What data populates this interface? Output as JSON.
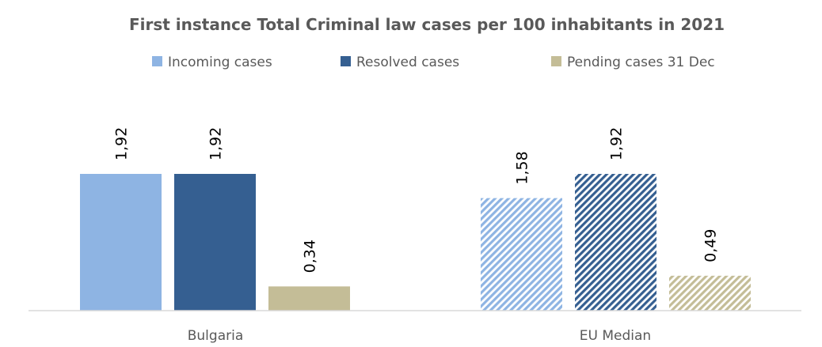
{
  "chart_data": {
    "type": "bar",
    "title": "First instance Total Criminal law cases per 100 inhabitants in 2021",
    "xlabel": "",
    "ylabel": "",
    "categories": [
      "Bulgaria",
      "EU Median"
    ],
    "series": [
      {
        "name": "Incoming cases",
        "values": [
          1.92,
          1.58
        ],
        "labels": [
          "1,92",
          "1,58"
        ]
      },
      {
        "name": "Resolved cases",
        "values": [
          1.92,
          1.92
        ],
        "labels": [
          "1,92",
          "1,92"
        ]
      },
      {
        "name": "Pending cases 31 Dec",
        "values": [
          0.34,
          0.49
        ],
        "labels": [
          "0,34",
          "0,49"
        ]
      }
    ],
    "ylim": [
      0,
      1.92
    ],
    "grid": false,
    "legend_position": "top",
    "data_labels": "rotated above bars",
    "pattern": {
      "Bulgaria": "solid",
      "EU Median": "diagonal hatch"
    },
    "colors": [
      "#8EB4E3",
      "#355F91",
      "#C4BD97"
    ]
  }
}
